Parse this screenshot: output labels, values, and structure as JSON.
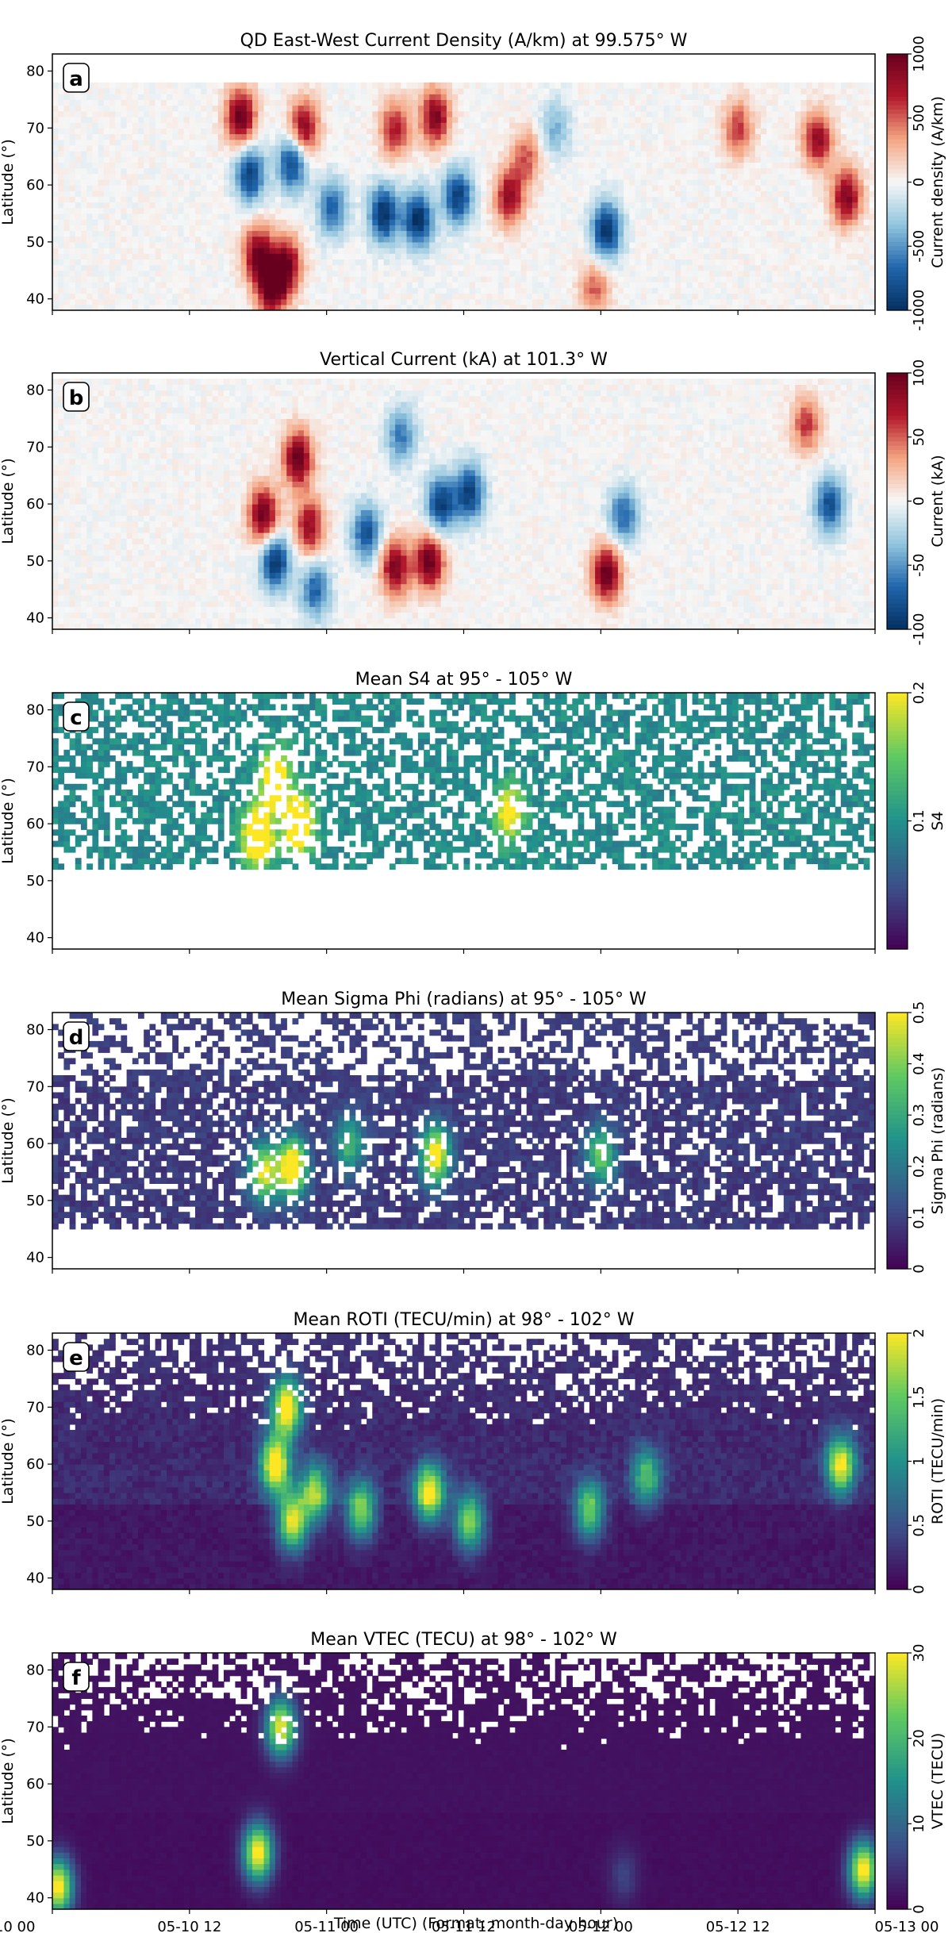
{
  "figure": {
    "xlabel": "Time (UTC) (Format: month-day hour)",
    "x_ticks": [
      "05-10 00",
      "05-10 12",
      "05-11 00",
      "05-11 12",
      "05-12 00",
      "05-12 12",
      "05-13 00"
    ]
  },
  "chart_data": [
    {
      "type": "heatmap",
      "panel_label": "a",
      "title": "QD East-West Current Density (A/km) at 99.575° W",
      "ylabel": "Latitude (°)",
      "xlim": [
        "05-10 00",
        "05-13 00"
      ],
      "ylim": [
        38,
        83
      ],
      "y_ticks": [
        40,
        50,
        60,
        70,
        80
      ],
      "lat_range": [
        38,
        78
      ],
      "colormap": "RdBu_r",
      "colorbar": {
        "label": "Current density (A/km)",
        "range": [
          -1000,
          1000
        ],
        "ticks": [
          "1000",
          "500",
          "0",
          "-500",
          "-1000"
        ]
      },
      "features": [
        {
          "t": 16.5,
          "lat": 72,
          "v": 1000
        },
        {
          "t": 17.3,
          "lat": 62,
          "v": -900
        },
        {
          "t": 18.0,
          "lat": 48,
          "v": 900
        },
        {
          "t": 19.2,
          "lat": 42,
          "v": 1000
        },
        {
          "t": 20.5,
          "lat": 46,
          "v": 900
        },
        {
          "t": 21.0,
          "lat": 64,
          "v": -900
        },
        {
          "t": 22.0,
          "lat": 70,
          "v": 900
        },
        {
          "t": 24.5,
          "lat": 56,
          "v": -700
        },
        {
          "t": 29.0,
          "lat": 55,
          "v": -1000
        },
        {
          "t": 32.0,
          "lat": 54,
          "v": -1000
        },
        {
          "t": 35.5,
          "lat": 58,
          "v": -900
        },
        {
          "t": 33.5,
          "lat": 72,
          "v": 900
        },
        {
          "t": 30.0,
          "lat": 70,
          "v": 700
        },
        {
          "t": 40.0,
          "lat": 58,
          "v": 800
        },
        {
          "t": 41.5,
          "lat": 65,
          "v": 500
        },
        {
          "t": 44.0,
          "lat": 70,
          "v": -400
        },
        {
          "t": 48.5,
          "lat": 52,
          "v": -1000
        },
        {
          "t": 47.5,
          "lat": 42,
          "v": 500
        },
        {
          "t": 60.0,
          "lat": 70,
          "v": 600
        },
        {
          "t": 67.0,
          "lat": 68,
          "v": 800
        },
        {
          "t": 69.5,
          "lat": 58,
          "v": 900
        }
      ]
    },
    {
      "type": "heatmap",
      "panel_label": "b",
      "title": "Vertical Current (kA) at 101.3° W",
      "ylabel": "Latitude (°)",
      "xlim": [
        "05-10 00",
        "05-13 00"
      ],
      "ylim": [
        38,
        83
      ],
      "y_ticks": [
        40,
        50,
        60,
        70,
        80
      ],
      "lat_range": [
        38,
        82
      ],
      "colormap": "RdBu_r",
      "colorbar": {
        "label": "Current (kA)",
        "range": [
          -100,
          100
        ],
        "ticks": [
          "100",
          "50",
          "0",
          "-50",
          "-100"
        ]
      },
      "features": [
        {
          "t": 18.5,
          "lat": 58,
          "v": 100
        },
        {
          "t": 19.5,
          "lat": 50,
          "v": -100
        },
        {
          "t": 21.5,
          "lat": 68,
          "v": 100
        },
        {
          "t": 22.5,
          "lat": 56,
          "v": 80
        },
        {
          "t": 23.0,
          "lat": 45,
          "v": -70
        },
        {
          "t": 27.5,
          "lat": 55,
          "v": -80
        },
        {
          "t": 30.0,
          "lat": 49,
          "v": 90
        },
        {
          "t": 33.0,
          "lat": 50,
          "v": 100
        },
        {
          "t": 34.0,
          "lat": 60,
          "v": -90
        },
        {
          "t": 36.5,
          "lat": 62,
          "v": -90
        },
        {
          "t": 30.5,
          "lat": 72,
          "v": -60
        },
        {
          "t": 48.5,
          "lat": 48,
          "v": 100
        },
        {
          "t": 50.0,
          "lat": 58,
          "v": -70
        },
        {
          "t": 66.0,
          "lat": 74,
          "v": 60
        },
        {
          "t": 68.0,
          "lat": 60,
          "v": -80
        }
      ]
    },
    {
      "type": "heatmap",
      "panel_label": "c",
      "title": "Mean S4 at 95° - 105° W",
      "ylabel": "Latitude (°)",
      "xlim": [
        "05-10 00",
        "05-13 00"
      ],
      "ylim": [
        38,
        83
      ],
      "y_ticks": [
        40,
        50,
        60,
        70,
        80
      ],
      "lat_range": [
        52,
        83
      ],
      "colormap": "viridis",
      "colorbar": {
        "label": "S4",
        "range": [
          0,
          0.2
        ],
        "ticks": [
          "0.2",
          "0.1"
        ]
      },
      "features": [
        {
          "t": 18.0,
          "lat": 58,
          "v": 0.2
        },
        {
          "t": 19.5,
          "lat": 68,
          "v": 0.16
        },
        {
          "t": 21.5,
          "lat": 60,
          "v": 0.18
        },
        {
          "t": 40.0,
          "lat": 62,
          "v": 0.12
        }
      ]
    },
    {
      "type": "heatmap",
      "panel_label": "d",
      "title": "Mean Sigma Phi (radians) at 95° - 105° W",
      "ylabel": "Latitude (°)",
      "xlim": [
        "05-10 00",
        "05-13 00"
      ],
      "ylim": [
        38,
        83
      ],
      "y_ticks": [
        40,
        50,
        60,
        70,
        80
      ],
      "lat_range": [
        45,
        83
      ],
      "colormap": "viridis",
      "colorbar": {
        "label": "Sigma Phi (radians)",
        "range": [
          0,
          0.5
        ],
        "ticks": [
          "0.5",
          "0.4",
          "0.3",
          "0.2",
          "0.1",
          "0"
        ]
      },
      "features": [
        {
          "t": 18.5,
          "lat": 55,
          "v": 0.4
        },
        {
          "t": 21.0,
          "lat": 56,
          "v": 0.5
        },
        {
          "t": 26.0,
          "lat": 60,
          "v": 0.25
        },
        {
          "t": 33.5,
          "lat": 58,
          "v": 0.45
        },
        {
          "t": 48.0,
          "lat": 58,
          "v": 0.3
        }
      ]
    },
    {
      "type": "heatmap",
      "panel_label": "e",
      "title": "Mean ROTI (TECU/min) at 98° - 102° W",
      "ylabel": "Latitude (°)",
      "xlim": [
        "05-10 00",
        "05-13 00"
      ],
      "ylim": [
        38,
        83
      ],
      "y_ticks": [
        40,
        50,
        60,
        70,
        80
      ],
      "lat_range": [
        38,
        83
      ],
      "colormap": "viridis",
      "colorbar": {
        "label": "ROTI (TECU/min)",
        "range": [
          0,
          2
        ],
        "ticks": [
          "2",
          "1.5",
          "1",
          "0.5",
          "0"
        ]
      },
      "features": [
        {
          "t": 19.5,
          "lat": 60,
          "v": 2.0
        },
        {
          "t": 20.5,
          "lat": 70,
          "v": 2.0
        },
        {
          "t": 21.0,
          "lat": 50,
          "v": 1.8
        },
        {
          "t": 23.0,
          "lat": 55,
          "v": 1.5
        },
        {
          "t": 27.0,
          "lat": 52,
          "v": 1.5
        },
        {
          "t": 33.0,
          "lat": 55,
          "v": 1.9
        },
        {
          "t": 36.5,
          "lat": 50,
          "v": 1.5
        },
        {
          "t": 47.0,
          "lat": 52,
          "v": 1.4
        },
        {
          "t": 52.0,
          "lat": 58,
          "v": 1.2
        },
        {
          "t": 69.0,
          "lat": 60,
          "v": 1.8
        }
      ]
    },
    {
      "type": "heatmap",
      "panel_label": "f",
      "title": "Mean VTEC (TECU) at 98° - 102° W",
      "ylabel": "Latitude (°)",
      "xlim": [
        "05-10 00",
        "05-13 00"
      ],
      "ylim": [
        38,
        83
      ],
      "y_ticks": [
        40,
        50,
        60,
        70,
        80
      ],
      "lat_range": [
        38,
        83
      ],
      "colormap": "viridis",
      "colorbar": {
        "label": "VTEC (TECU)",
        "range": [
          0,
          30
        ],
        "ticks": [
          "30",
          "20",
          "10",
          "0"
        ]
      },
      "features": [
        {
          "t": 0.5,
          "lat": 42,
          "v": 30
        },
        {
          "t": 18.0,
          "lat": 48,
          "v": 30
        },
        {
          "t": 20.0,
          "lat": 70,
          "v": 28
        },
        {
          "t": 71.0,
          "lat": 45,
          "v": 30
        },
        {
          "t": 50.0,
          "lat": 44,
          "v": 5
        }
      ]
    }
  ]
}
